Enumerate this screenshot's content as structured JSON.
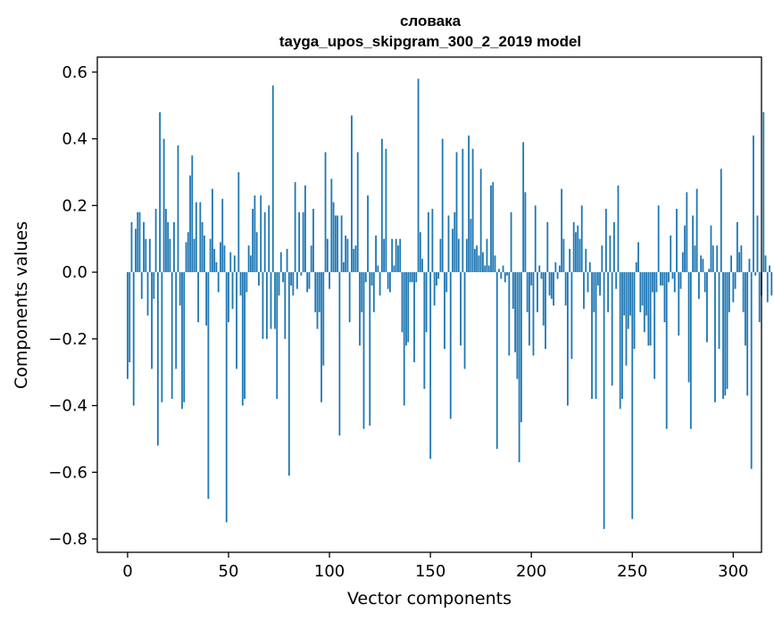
{
  "chart_data": {
    "type": "bar",
    "title": "словака",
    "subtitle": "tayga_upos_skipgram_300_2_2019 model",
    "xlabel": "Vector components",
    "ylabel": "Components values",
    "xlim": [
      -15,
      314
    ],
    "ylim": [
      -0.84,
      0.645
    ],
    "xticks": [
      {
        "value": 0,
        "label": "0"
      },
      {
        "value": 50,
        "label": "50"
      },
      {
        "value": 100,
        "label": "100"
      },
      {
        "value": 150,
        "label": "150"
      },
      {
        "value": 200,
        "label": "200"
      },
      {
        "value": 250,
        "label": "250"
      },
      {
        "value": 300,
        "label": "300"
      }
    ],
    "yticks": [
      {
        "value": 0.6,
        "label": "0.6"
      },
      {
        "value": 0.4,
        "label": "0.4"
      },
      {
        "value": 0.2,
        "label": "0.2"
      },
      {
        "value": 0.0,
        "label": "0.0"
      },
      {
        "value": -0.2,
        "label": "−0.2"
      },
      {
        "value": -0.4,
        "label": "−0.4"
      },
      {
        "value": -0.6,
        "label": "−0.6"
      },
      {
        "value": -0.8,
        "label": "−0.8"
      }
    ],
    "grid": false,
    "bar_color": "#1f77b4",
    "values": [
      -0.32,
      -0.27,
      0.15,
      -0.4,
      0.13,
      0.18,
      0.18,
      -0.08,
      0.15,
      0.1,
      -0.13,
      0.1,
      -0.29,
      -0.08,
      0.19,
      -0.52,
      0.48,
      -0.39,
      0.4,
      0.19,
      0.15,
      0.1,
      -0.38,
      0.15,
      -0.29,
      0.38,
      -0.1,
      -0.41,
      -0.39,
      0.09,
      0.12,
      0.29,
      0.35,
      0.1,
      0.21,
      -0.15,
      0.21,
      0.15,
      0.11,
      -0.16,
      -0.68,
      0.1,
      0.25,
      0.07,
      0.03,
      -0.06,
      0.09,
      0.22,
      0.08,
      -0.75,
      -0.15,
      0.06,
      -0.11,
      0.05,
      -0.29,
      0.3,
      -0.07,
      -0.4,
      -0.38,
      -0.06,
      0.08,
      0.05,
      0.19,
      0.23,
      0.12,
      -0.04,
      0.23,
      -0.2,
      0.18,
      -0.2,
      0.2,
      -0.17,
      0.56,
      -0.17,
      -0.38,
      -0.07,
      0.06,
      -0.03,
      -0.2,
      0.07,
      -0.61,
      -0.04,
      -0.07,
      0.27,
      -0.05,
      0.18,
      -0.01,
      0.18,
      0.26,
      -0.06,
      -0.05,
      0.08,
      0.19,
      -0.12,
      -0.17,
      -0.12,
      -0.39,
      -0.28,
      0.36,
      0.1,
      -0.05,
      0.28,
      0.21,
      0.17,
      0.17,
      -0.49,
      0.17,
      0.03,
      0.11,
      0.1,
      -0.15,
      0.47,
      0.07,
      0.08,
      0.36,
      -0.22,
      -0.12,
      -0.47,
      -0.03,
      0.23,
      -0.46,
      -0.04,
      -0.12,
      0.11,
      0.02,
      -0.07,
      0.4,
      0.1,
      0.37,
      -0.05,
      -0.06,
      0.1,
      0.02,
      0.1,
      0.08,
      0.1,
      -0.18,
      -0.4,
      -0.22,
      -0.21,
      -0.03,
      -0.03,
      -0.27,
      -0.03,
      0.58,
      0.12,
      0.04,
      -0.35,
      -0.18,
      0.18,
      -0.56,
      0.19,
      -0.1,
      -0.04,
      -0.02,
      0.1,
      0.4,
      -0.23,
      -0.06,
      0.17,
      -0.44,
      0.13,
      0.18,
      0.36,
      0.1,
      -0.22,
      0.37,
      -0.29,
      0.1,
      0.41,
      0.16,
      0.37,
      0.07,
      0.08,
      0.05,
      0.31,
      0.06,
      0.02,
      0.1,
      0.02,
      0.26,
      0.27,
      0.05,
      -0.53,
      0.01,
      -0.02,
      0.02,
      -0.03,
      -0.01,
      -0.25,
      0.18,
      -0.11,
      -0.24,
      -0.32,
      -0.57,
      -0.45,
      0.39,
      0.24,
      -0.12,
      -0.22,
      -0.04,
      -0.25,
      0.2,
      -0.12,
      0.02,
      -0.02,
      -0.16,
      -0.23,
      0.15,
      -0.07,
      -0.08,
      -0.1,
      0.03,
      -0.02,
      0.02,
      0.25,
      0.1,
      -0.1,
      -0.4,
      0.07,
      -0.26,
      0.15,
      0.12,
      0.14,
      0.1,
      0.2,
      -0.11,
      0.07,
      -0.06,
      0.03,
      -0.38,
      -0.12,
      -0.38,
      -0.04,
      -0.07,
      0.08,
      -0.77,
      0.19,
      -0.12,
      0.11,
      -0.34,
      0.15,
      -0.05,
      0.26,
      -0.41,
      -0.38,
      -0.13,
      -0.28,
      -0.17,
      -0.13,
      -0.74,
      -0.23,
      0.03,
      0.09,
      -0.12,
      -0.1,
      -0.18,
      -0.13,
      -0.22,
      -0.22,
      -0.06,
      -0.32,
      -0.06,
      0.2,
      -0.04,
      -0.04,
      -0.15,
      -0.47,
      -0.03,
      0.11,
      -0.02,
      -0.06,
      0.19,
      -0.19,
      -0.05,
      0.06,
      0.14,
      0.24,
      -0.33,
      -0.47,
      0.17,
      0.08,
      0.25,
      -0.08,
      0.05,
      0.04,
      -0.06,
      -0.21,
      0.01,
      0.14,
      0.08,
      -0.39,
      0.08,
      -0.23,
      0.31,
      -0.38,
      -0.37,
      -0.35,
      -0.12,
      0.05,
      -0.09,
      -0.05,
      0.15,
      0.06,
      0.08,
      -0.12,
      -0.22,
      -0.37,
      0.04,
      -0.59,
      0.41,
      -0.01,
      0.17,
      -0.15,
      -0.07,
      0.48,
      0.05,
      -0.09,
      0.02,
      -0.07
    ]
  }
}
